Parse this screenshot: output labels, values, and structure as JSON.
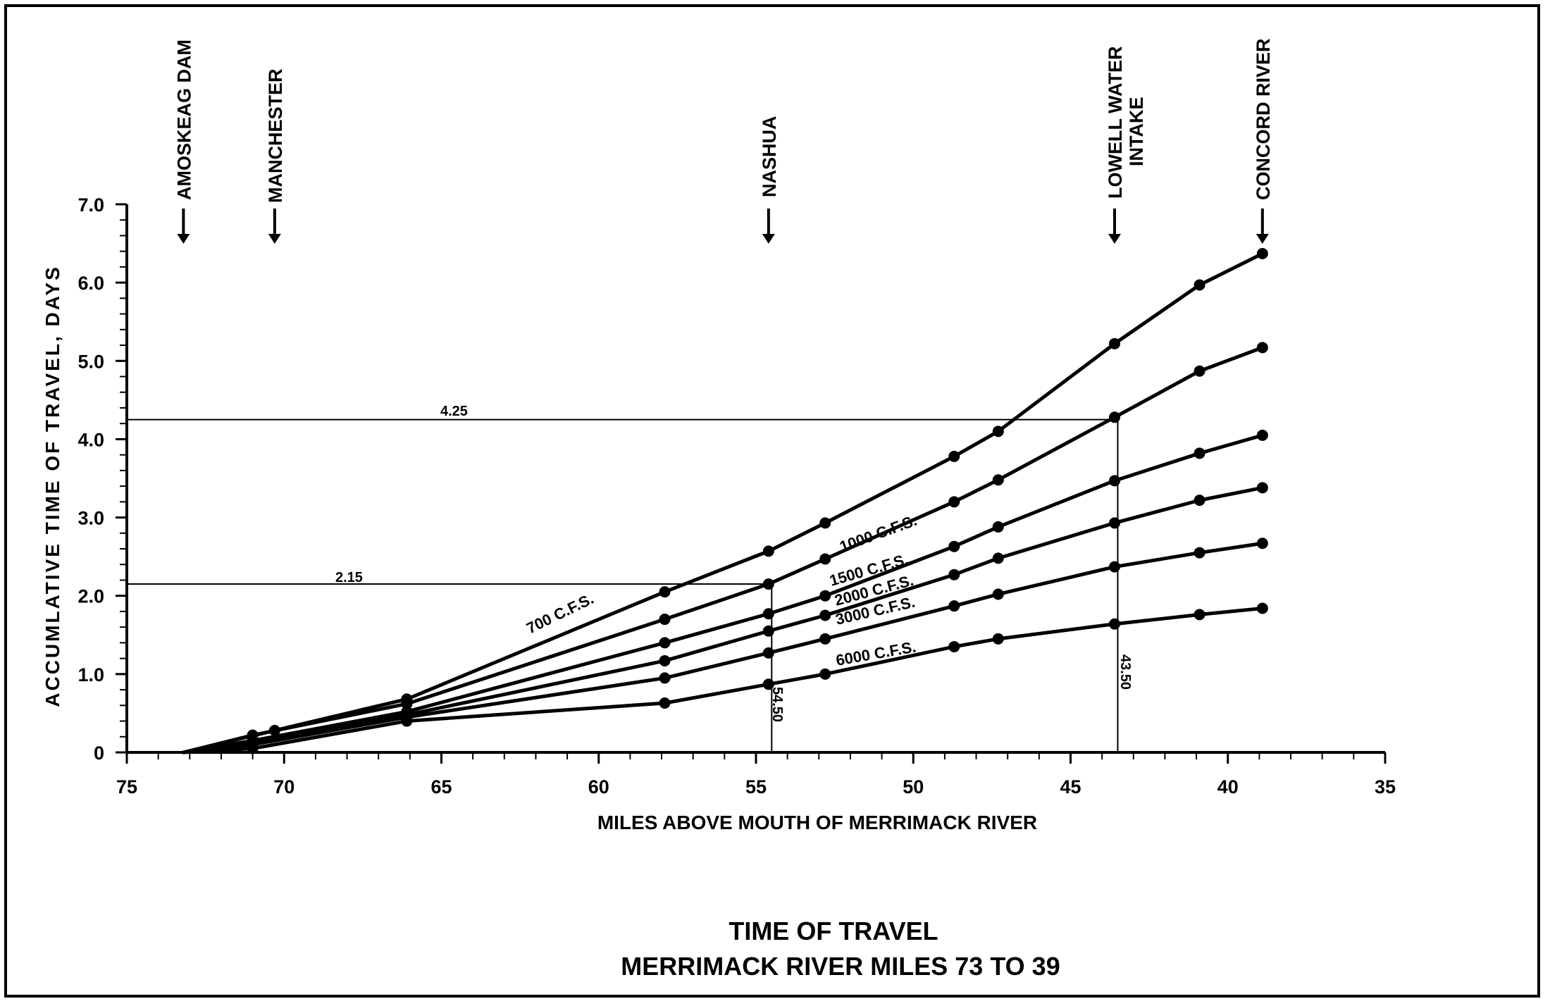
{
  "chart_data": {
    "type": "line",
    "title": "TIME OF TRAVEL",
    "subtitle": "MERRIMACK RIVER MILES 73 TO 39",
    "xlabel": "MILES ABOVE MOUTH OF MERRIMACK RIVER",
    "ylabel": "ACCUMLATIVE TIME OF TRAVEL, DAYS",
    "xlim": [
      75,
      35
    ],
    "ylim": [
      0,
      7
    ],
    "x_reversed": true,
    "grid": false,
    "x_ticks": [
      75,
      70,
      65,
      60,
      55,
      50,
      45,
      40,
      35
    ],
    "y_ticks": [
      0,
      1,
      2,
      3,
      4,
      5,
      6,
      7
    ],
    "x_tick_labels": [
      "75",
      "70",
      "65",
      "60",
      "55",
      "50",
      "45",
      "40",
      "35"
    ],
    "y_tick_labels": [
      "0",
      "1.0",
      "2.0",
      "3.0",
      "4.0",
      "5.0",
      "6.0",
      "7.0"
    ],
    "locations": [
      {
        "label": "AMOSKEAG DAM",
        "mile": 73.2
      },
      {
        "label": "MANCHESTER",
        "mile": 70.3
      },
      {
        "label": "NASHUA",
        "mile": 54.6
      },
      {
        "label": "LOWELL WATER INTAKE",
        "mile": 43.6
      },
      {
        "label": "CONCORD RIVER",
        "mile": 38.9
      }
    ],
    "series": [
      {
        "name": "700 C.F.S.",
        "points": [
          [
            73.2,
            0.0
          ],
          [
            70.3,
            0.28
          ],
          [
            66.1,
            0.68
          ],
          [
            57.9,
            2.05
          ],
          [
            54.6,
            2.57
          ],
          [
            52.8,
            2.93
          ],
          [
            48.7,
            3.78
          ],
          [
            47.3,
            4.1
          ],
          [
            43.6,
            5.22
          ],
          [
            40.9,
            5.97
          ],
          [
            38.9,
            6.37
          ]
        ]
      },
      {
        "name": "1000 C.F.S.",
        "points": [
          [
            73.2,
            0.0
          ],
          [
            71.0,
            0.22
          ],
          [
            66.1,
            0.62
          ],
          [
            57.9,
            1.7
          ],
          [
            54.6,
            2.15
          ],
          [
            52.8,
            2.47
          ],
          [
            48.7,
            3.2
          ],
          [
            47.3,
            3.48
          ],
          [
            43.6,
            4.28
          ],
          [
            40.9,
            4.87
          ],
          [
            38.9,
            5.17
          ]
        ]
      },
      {
        "name": "1500 C.F.S.",
        "points": [
          [
            73.2,
            0.0
          ],
          [
            71.0,
            0.15
          ],
          [
            66.1,
            0.52
          ],
          [
            57.9,
            1.4
          ],
          [
            54.6,
            1.77
          ],
          [
            52.8,
            2.0
          ],
          [
            48.7,
            2.63
          ],
          [
            47.3,
            2.88
          ],
          [
            43.6,
            3.47
          ],
          [
            40.9,
            3.82
          ],
          [
            38.9,
            4.05
          ]
        ]
      },
      {
        "name": "2000 C.F.S.",
        "points": [
          [
            73.2,
            0.0
          ],
          [
            71.0,
            0.12
          ],
          [
            66.1,
            0.48
          ],
          [
            57.9,
            1.17
          ],
          [
            54.6,
            1.55
          ],
          [
            52.8,
            1.75
          ],
          [
            48.7,
            2.27
          ],
          [
            47.3,
            2.48
          ],
          [
            43.6,
            2.93
          ],
          [
            40.9,
            3.22
          ],
          [
            38.9,
            3.38
          ]
        ]
      },
      {
        "name": "3000 C.F.S.",
        "points": [
          [
            73.2,
            0.0
          ],
          [
            71.0,
            0.1
          ],
          [
            66.1,
            0.45
          ],
          [
            57.9,
            0.95
          ],
          [
            54.6,
            1.27
          ],
          [
            52.8,
            1.45
          ],
          [
            48.7,
            1.87
          ],
          [
            47.3,
            2.02
          ],
          [
            43.6,
            2.37
          ],
          [
            40.9,
            2.55
          ],
          [
            38.9,
            2.67
          ]
        ]
      },
      {
        "name": "6000 C.F.S.",
        "points": [
          [
            73.2,
            0.0
          ],
          [
            71.0,
            0.05
          ],
          [
            66.1,
            0.4
          ],
          [
            57.9,
            0.63
          ],
          [
            54.6,
            0.87
          ],
          [
            52.8,
            1.0
          ],
          [
            48.7,
            1.35
          ],
          [
            47.3,
            1.45
          ],
          [
            43.6,
            1.64
          ],
          [
            40.9,
            1.76
          ],
          [
            38.9,
            1.84
          ]
        ]
      }
    ],
    "annotations": [
      {
        "label": "4.25",
        "type": "hline",
        "y": 4.25,
        "x_to": 43.5
      },
      {
        "label": "2.15",
        "type": "hline",
        "y": 2.15,
        "x_to": 54.5
      },
      {
        "label": "54.50",
        "type": "vline",
        "x": 54.5,
        "y_to": 2.15
      },
      {
        "label": "43.50",
        "type": "vline",
        "x": 43.5,
        "y_to": 4.25
      }
    ]
  }
}
